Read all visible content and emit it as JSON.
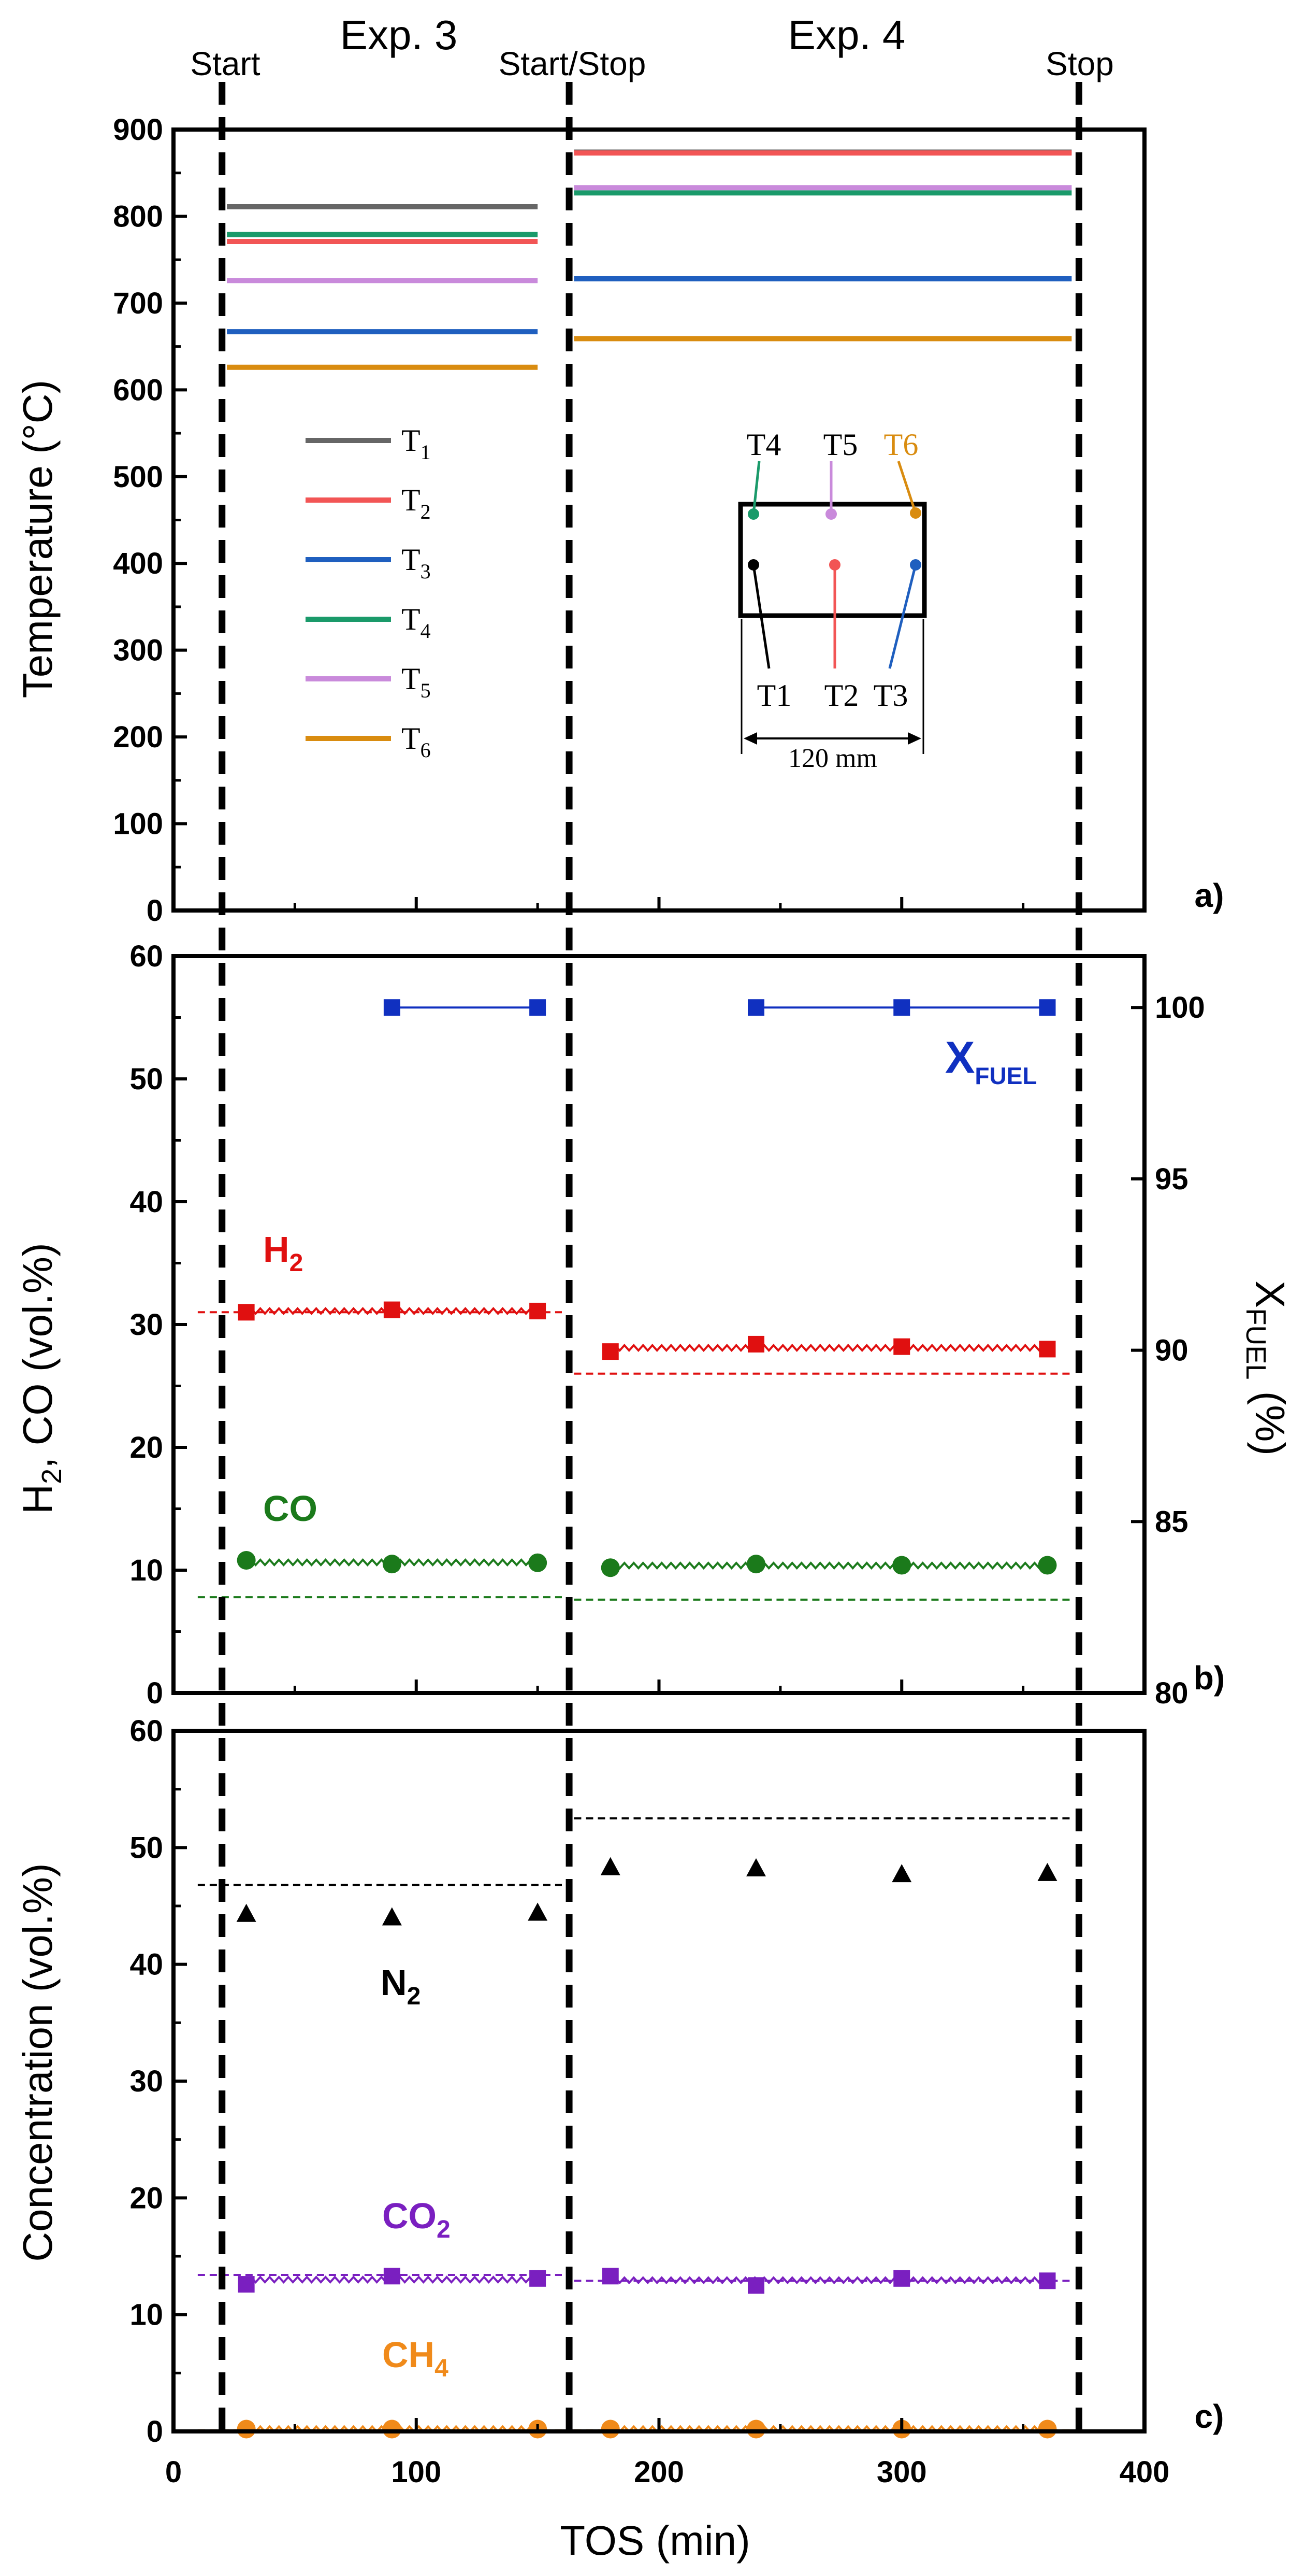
{
  "header": {
    "exp3": "Exp. 3",
    "exp4": "Exp. 4",
    "start": "Start",
    "startstop": "Start/Stop",
    "stop": "Stop"
  },
  "xaxis": {
    "label": "TOS (min)",
    "lim": [
      0,
      400
    ],
    "ticks": [
      "0",
      "100",
      "200",
      "300",
      "400"
    ]
  },
  "vlines": [
    20,
    163,
    373
  ],
  "chart_data": [
    {
      "type": "line",
      "panel": "a)",
      "ylabel": "Temperature (°C)",
      "ylim": [
        0,
        900
      ],
      "yticks": [
        "0",
        "100",
        "200",
        "300",
        "400",
        "500",
        "600",
        "700",
        "800",
        "900"
      ],
      "series": [
        {
          "name": "T1",
          "sub": "1",
          "color": "#666666",
          "segments": [
            {
              "x": [
                22,
                150
              ],
              "y": 811
            },
            {
              "x": [
                165,
                370
              ],
              "y": 874
            }
          ]
        },
        {
          "name": "T2",
          "sub": "2",
          "color": "#f25555",
          "segments": [
            {
              "x": [
                22,
                150
              ],
              "y": 771
            },
            {
              "x": [
                165,
                370
              ],
              "y": 873
            }
          ]
        },
        {
          "name": "T3",
          "sub": "3",
          "color": "#1f5fbf",
          "segments": [
            {
              "x": [
                22,
                150
              ],
              "y": 667
            },
            {
              "x": [
                165,
                370
              ],
              "y": 728
            }
          ]
        },
        {
          "name": "T4",
          "sub": "4",
          "color": "#1a9a6a",
          "segments": [
            {
              "x": [
                22,
                150
              ],
              "y": 779
            },
            {
              "x": [
                165,
                370
              ],
              "y": 827
            }
          ]
        },
        {
          "name": "T5",
          "sub": "5",
          "color": "#c98adb",
          "segments": [
            {
              "x": [
                22,
                150
              ],
              "y": 726
            },
            {
              "x": [
                165,
                370
              ],
              "y": 833
            }
          ]
        },
        {
          "name": "T6",
          "sub": "6",
          "color": "#d98c10",
          "segments": [
            {
              "x": [
                22,
                150
              ],
              "y": 626
            },
            {
              "x": [
                165,
                370
              ],
              "y": 659
            }
          ]
        }
      ],
      "inset": {
        "labels": [
          "T4",
          "T5",
          "T6",
          "T1",
          "T2",
          "T3"
        ],
        "length": "120 mm"
      }
    },
    {
      "type": "line",
      "panel": "b)",
      "ylabel": "H2, CO (vol.%)",
      "ylabel_parts": [
        "H",
        "2",
        ", CO (vol.%)"
      ],
      "ylim": [
        0,
        60
      ],
      "yticks": [
        "0",
        "10",
        "20",
        "30",
        "40",
        "50",
        "60"
      ],
      "y2label": "XFUEL (%)",
      "y2label_parts": [
        "X",
        "FUEL",
        " (%)"
      ],
      "y2lim": [
        80,
        101.5
      ],
      "y2ticks": [
        "80",
        "85",
        "90",
        "95",
        "100"
      ],
      "series": [
        {
          "name": "H2",
          "label": "H",
          "sub": "2",
          "color": "#e01010",
          "marker": "square",
          "x": [
            30,
            90,
            150,
            180,
            240,
            300,
            360
          ],
          "y": [
            31.0,
            31.2,
            31.1,
            27.8,
            28.4,
            28.2,
            28.0
          ],
          "equilibrium": [
            {
              "x": [
                10,
                160
              ],
              "y": 31.0
            },
            {
              "x": [
                165,
                370
              ],
              "y": 26.0
            }
          ]
        },
        {
          "name": "CO",
          "label": "CO",
          "color": "#1b7a1b",
          "marker": "circle",
          "x": [
            30,
            90,
            150,
            180,
            240,
            300,
            360
          ],
          "y": [
            10.8,
            10.5,
            10.6,
            10.2,
            10.5,
            10.4,
            10.4
          ],
          "equilibrium": [
            {
              "x": [
                10,
                160
              ],
              "y": 7.8
            },
            {
              "x": [
                165,
                370
              ],
              "y": 7.6
            }
          ]
        },
        {
          "name": "XFUEL",
          "label": "X",
          "sub": "FUEL",
          "color": "#1030c0",
          "marker": "square",
          "axis": "right",
          "x": [
            90,
            150,
            240,
            300,
            360
          ],
          "y": [
            100,
            100,
            100,
            100,
            100
          ]
        }
      ]
    },
    {
      "type": "scatter",
      "panel": "c)",
      "ylabel": "Concentration (vol.%)",
      "ylim": [
        0,
        60
      ],
      "yticks": [
        "0",
        "10",
        "20",
        "30",
        "40",
        "50",
        "60"
      ],
      "series": [
        {
          "name": "N2",
          "label": "N",
          "sub": "2",
          "color": "#000000",
          "marker": "triangle",
          "x": [
            30,
            90,
            150,
            180,
            240,
            300,
            360
          ],
          "y": [
            44.3,
            44.0,
            44.4,
            48.3,
            48.2,
            47.7,
            47.8
          ],
          "equilibrium": [
            {
              "x": [
                10,
                160
              ],
              "y": 46.8
            },
            {
              "x": [
                165,
                370
              ],
              "y": 52.5
            }
          ]
        },
        {
          "name": "CO2",
          "label": "CO",
          "sub": "2",
          "color": "#7a1fc0",
          "marker": "square",
          "x": [
            30,
            90,
            150,
            180,
            240,
            300,
            360
          ],
          "y": [
            12.6,
            13.3,
            13.1,
            13.3,
            12.5,
            13.1,
            12.9
          ],
          "equilibrium": [
            {
              "x": [
                10,
                160
              ],
              "y": 13.4
            },
            {
              "x": [
                165,
                370
              ],
              "y": 12.9
            }
          ]
        },
        {
          "name": "CH4",
          "label": "CH",
          "sub": "4",
          "color": "#f08a1a",
          "marker": "circle",
          "x": [
            30,
            90,
            150,
            180,
            240,
            300,
            360
          ],
          "y": [
            0.2,
            0.2,
            0.2,
            0.2,
            0.2,
            0.2,
            0.2
          ],
          "equilibrium": [
            {
              "x": [
                10,
                160
              ],
              "y": 0.1
            },
            {
              "x": [
                165,
                370
              ],
              "y": 0.1
            }
          ]
        }
      ]
    }
  ]
}
